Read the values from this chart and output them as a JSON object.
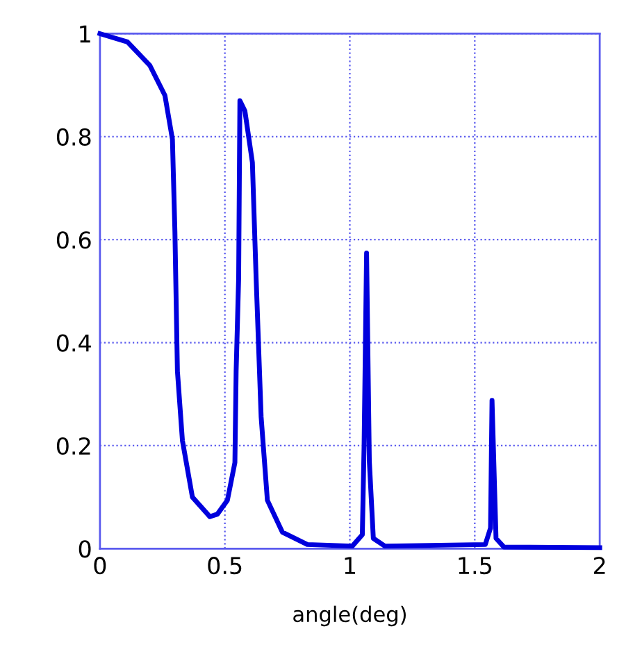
{
  "chart_data": {
    "type": "line",
    "xlabel": "angle(deg)",
    "x": [
      0,
      0.11,
      0.2,
      0.26,
      0.29,
      0.3,
      0.31,
      0.33,
      0.37,
      0.44,
      0.47,
      0.51,
      0.54,
      0.545,
      0.555,
      0.56,
      0.58,
      0.61,
      0.625,
      0.645,
      0.67,
      0.73,
      0.83,
      1.01,
      1.05,
      1.057,
      1.067,
      1.078,
      1.094,
      1.14,
      1.542,
      1.563,
      1.569,
      1.585,
      1.617,
      2
    ],
    "series": [
      {
        "color": "#0000dd",
        "values": [
          1,
          0.984,
          0.938,
          0.88,
          0.795,
          0.615,
          0.345,
          0.21,
          0.1,
          0.062,
          0.067,
          0.094,
          0.167,
          0.345,
          0.525,
          0.87,
          0.85,
          0.75,
          0.525,
          0.256,
          0.094,
          0.032,
          0.008,
          0.005,
          0.027,
          0.2,
          0.574,
          0.17,
          0.02,
          0.005,
          0.008,
          0.04,
          0.288,
          0.02,
          0.003,
          0.002
        ]
      }
    ],
    "xlim": [
      0,
      2
    ],
    "ylim": [
      0,
      1
    ],
    "xticks": [
      0,
      0.5,
      1,
      1.5,
      2
    ],
    "yticks": [
      0,
      0.2,
      0.4,
      0.6,
      0.8,
      1
    ],
    "grid": true,
    "legend": false,
    "marker": "none",
    "line_style": "solid"
  }
}
